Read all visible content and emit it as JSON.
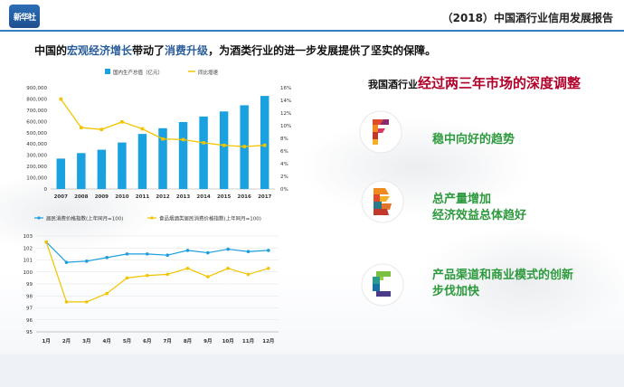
{
  "header": {
    "logo_text": "新华社",
    "report_title": "（2018）中国酒行业信用发展报告"
  },
  "intro": {
    "part1": "中国的",
    "highlight1": "宏观经济增长",
    "part2": "带动了",
    "highlight2": "消费升级",
    "part3": "，为酒类行业的进一步发展提供了坚实的保障。"
  },
  "side": {
    "title_prefix": "我国酒行业",
    "title_emphasis": "经过两三年市场的深度调整",
    "features": [
      {
        "icon": "letter-f-mosaic-icon",
        "lines": [
          "稳中向好的趋势"
        ]
      },
      {
        "icon": "letter-b-mosaic-icon",
        "lines": [
          "总产量增加",
          "经济效益总体趋好"
        ]
      },
      {
        "icon": "letter-c-mosaic-icon",
        "lines": [
          "产品渠道和商业模式的创新",
          "步伐加快"
        ]
      }
    ]
  },
  "chart_data": [
    {
      "type": "bar",
      "categories": [
        "2007",
        "2008",
        "2009",
        "2010",
        "2011",
        "2012",
        "2013",
        "2014",
        "2015",
        "2016",
        "2017"
      ],
      "series": [
        {
          "name": "国内生产总值（亿元）",
          "type": "bar",
          "color": "#1aa1e0",
          "axis": "left",
          "values": [
            270000,
            319000,
            349000,
            413000,
            489000,
            540000,
            595000,
            644000,
            689000,
            744000,
            827000
          ]
        },
        {
          "name": "同比增速",
          "type": "line",
          "color": "#f2c400",
          "axis": "right",
          "values": [
            14.2,
            9.7,
            9.4,
            10.6,
            9.5,
            7.9,
            7.8,
            7.3,
            6.9,
            6.7,
            6.9
          ]
        }
      ],
      "left_ticks": [
        "0",
        "100,000",
        "200,000",
        "300,000",
        "400,000",
        "500,000",
        "600,000",
        "700,000",
        "800,000",
        "900,000"
      ],
      "right_ticks": [
        "0%",
        "2%",
        "4%",
        "6%",
        "8%",
        "10%",
        "12%",
        "14%",
        "16%"
      ],
      "ylim_left": [
        0,
        900000
      ],
      "ylim_right": [
        0,
        16
      ],
      "legend": "top"
    },
    {
      "type": "line",
      "categories": [
        "1月",
        "2月",
        "3月",
        "4月",
        "5月",
        "6月",
        "7月",
        "8月",
        "9月",
        "10月",
        "11月",
        "12月"
      ],
      "series": [
        {
          "name": "居民消费价格指数(上年同月=100)",
          "color": "#1a9ee0",
          "values": [
            102.5,
            100.8,
            100.9,
            101.2,
            101.5,
            101.5,
            101.4,
            101.8,
            101.6,
            101.9,
            101.7,
            101.8
          ]
        },
        {
          "name": "食品烟酒类居民消费价格指数(上年同月=100)",
          "color": "#f2c400",
          "values": [
            102.5,
            97.5,
            97.5,
            98.2,
            99.5,
            99.7,
            99.8,
            100.3,
            99.6,
            100.3,
            99.8,
            100.3
          ]
        }
      ],
      "y_ticks": [
        "95",
        "96",
        "97",
        "98",
        "99",
        "100",
        "101",
        "102",
        "103"
      ],
      "ylim": [
        95,
        103
      ],
      "legend": "top"
    }
  ]
}
